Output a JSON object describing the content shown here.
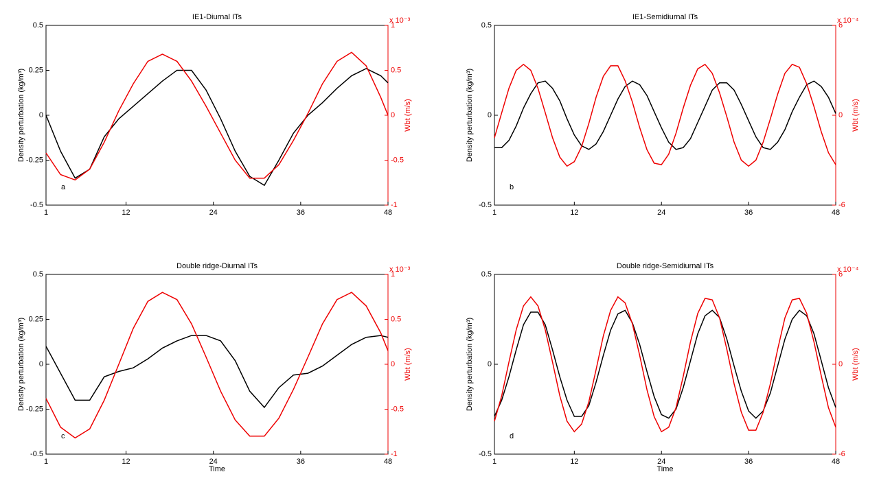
{
  "chart_data": [
    {
      "type": "line",
      "title": "IE1-Diurnal ITs",
      "annotation": "a",
      "ylabel": "Density perturbation (kg/m³)",
      "y2label": "Wbt (m/s)",
      "y2_multiplier": "x 10⁻³",
      "x": [
        1,
        3,
        5,
        7,
        9,
        11,
        13,
        15,
        17,
        19,
        21,
        23,
        25,
        27,
        29,
        31,
        33,
        35,
        37,
        39,
        41,
        43,
        45,
        47,
        48
      ],
      "xlim": [
        1,
        48
      ],
      "xticks": [
        1,
        12,
        24,
        36,
        48
      ],
      "ylim": [
        -0.5,
        0.5
      ],
      "yticks": [
        -0.5,
        -0.25,
        0,
        0.25,
        0.5
      ],
      "y2lim": [
        -1,
        1
      ],
      "y2ticks": [
        -1,
        -0.5,
        0,
        0.5,
        1
      ],
      "series": [
        {
          "color": "#000000",
          "axis": "y",
          "values": [
            0,
            -0.2,
            -0.35,
            -0.3,
            -0.12,
            -0.02,
            0.05,
            0.12,
            0.19,
            0.25,
            0.25,
            0.14,
            -0.02,
            -0.2,
            -0.34,
            -0.39,
            -0.25,
            -0.1,
            0,
            0.07,
            0.15,
            0.22,
            0.26,
            0.22,
            0.18
          ]
        },
        {
          "color": "#ee0000",
          "axis": "y2",
          "values": [
            -0.42,
            -0.66,
            -0.72,
            -0.6,
            -0.3,
            0.05,
            0.35,
            0.6,
            0.68,
            0.6,
            0.38,
            0.1,
            -0.2,
            -0.5,
            -0.7,
            -0.7,
            -0.55,
            -0.28,
            0.02,
            0.35,
            0.6,
            0.7,
            0.55,
            0.2,
            0
          ]
        }
      ]
    },
    {
      "type": "line",
      "title": "IE1-Semidiurnal ITs",
      "annotation": "b",
      "ylabel": "Density perturbation (kg/m³)",
      "y2label": "Wbt (m/s)",
      "y2_multiplier": "x 10⁻⁴",
      "x": [
        1,
        2,
        3,
        4,
        5,
        6,
        7,
        8,
        9,
        10,
        11,
        12,
        13,
        14,
        15,
        16,
        17,
        18,
        19,
        20,
        21,
        22,
        23,
        24,
        25,
        26,
        27,
        28,
        29,
        30,
        31,
        32,
        33,
        34,
        35,
        36,
        37,
        38,
        39,
        40,
        41,
        42,
        43,
        44,
        45,
        46,
        47,
        48
      ],
      "xlim": [
        1,
        48
      ],
      "xticks": [
        1,
        12,
        24,
        36,
        48
      ],
      "ylim": [
        -0.5,
        0.5
      ],
      "yticks": [
        -0.5,
        0,
        0.5
      ],
      "y2lim": [
        -6,
        6
      ],
      "y2ticks": [
        -6,
        0,
        6
      ],
      "series": [
        {
          "color": "#000000",
          "axis": "y",
          "values": [
            -0.18,
            -0.18,
            -0.14,
            -0.06,
            0.04,
            0.12,
            0.18,
            0.19,
            0.15,
            0.08,
            -0.02,
            -0.11,
            -0.17,
            -0.19,
            -0.16,
            -0.09,
            0,
            0.09,
            0.16,
            0.19,
            0.17,
            0.11,
            0.02,
            -0.07,
            -0.15,
            -0.19,
            -0.18,
            -0.13,
            -0.04,
            0.05,
            0.14,
            0.18,
            0.18,
            0.14,
            0.06,
            -0.03,
            -0.12,
            -0.18,
            -0.19,
            -0.15,
            -0.08,
            0.02,
            0.1,
            0.17,
            0.19,
            0.16,
            0.1,
            0.01
          ]
        },
        {
          "color": "#ee0000",
          "axis": "y2",
          "values": [
            -1.5,
            0.17,
            1.8,
            3,
            3.4,
            3,
            1.8,
            0.17,
            -1.5,
            -2.8,
            -3.4,
            -3.1,
            -2.1,
            -0.54,
            1.2,
            2.6,
            3.3,
            3.3,
            2.3,
            0.88,
            -0.82,
            -2.3,
            -3.2,
            -3.3,
            -2.6,
            -1.2,
            0.48,
            2,
            3.1,
            3.4,
            2.8,
            1.5,
            -0.1,
            -1.8,
            -3,
            -3.4,
            -3,
            -1.8,
            -0.24,
            1.4,
            2.8,
            3.4,
            3.2,
            2.1,
            0.58,
            -1.1,
            -2.5,
            -3.3
          ]
        }
      ]
    },
    {
      "type": "line",
      "title": "Double ridge-Diurnal ITs",
      "annotation": "c",
      "xlabel": "Time",
      "ylabel": "Density perturbation (kg/m³)",
      "y2label": "Wbt (m/s)",
      "y2_multiplier": "x 10⁻³",
      "x": [
        1,
        3,
        5,
        7,
        9,
        11,
        13,
        15,
        17,
        19,
        21,
        23,
        25,
        27,
        29,
        31,
        33,
        35,
        37,
        39,
        41,
        43,
        45,
        47,
        48
      ],
      "xlim": [
        1,
        48
      ],
      "xticks": [
        1,
        12,
        24,
        36,
        48
      ],
      "ylim": [
        -0.5,
        0.5
      ],
      "yticks": [
        -0.5,
        -0.25,
        0,
        0.25,
        0.5
      ],
      "y2lim": [
        -1,
        1
      ],
      "y2ticks": [
        -1,
        -0.5,
        0,
        0.5,
        1
      ],
      "series": [
        {
          "color": "#000000",
          "axis": "y",
          "values": [
            0.1,
            -0.05,
            -0.2,
            -0.2,
            -0.07,
            -0.04,
            -0.02,
            0.03,
            0.09,
            0.13,
            0.16,
            0.16,
            0.13,
            0.02,
            -0.15,
            -0.24,
            -0.13,
            -0.06,
            -0.05,
            -0.01,
            0.05,
            0.11,
            0.15,
            0.16,
            0.15
          ]
        },
        {
          "color": "#ee0000",
          "axis": "y2",
          "values": [
            -0.38,
            -0.7,
            -0.82,
            -0.72,
            -0.4,
            0,
            0.4,
            0.7,
            0.8,
            0.72,
            0.45,
            0.08,
            -0.3,
            -0.62,
            -0.8,
            -0.8,
            -0.6,
            -0.28,
            0.08,
            0.45,
            0.72,
            0.8,
            0.65,
            0.35,
            0.15
          ]
        }
      ]
    },
    {
      "type": "line",
      "title": "Double ridge-Semidiurnal ITs",
      "annotation": "d",
      "xlabel": "Time",
      "ylabel": "Density perturbation (kg/m³)",
      "y2label": "Wbt (m/s)",
      "y2_multiplier": "x 10⁻⁴",
      "x": [
        1,
        2,
        3,
        4,
        5,
        6,
        7,
        8,
        9,
        10,
        11,
        12,
        13,
        14,
        15,
        16,
        17,
        18,
        19,
        20,
        21,
        22,
        23,
        24,
        25,
        26,
        27,
        28,
        29,
        30,
        31,
        32,
        33,
        34,
        35,
        36,
        37,
        38,
        39,
        40,
        41,
        42,
        43,
        44,
        45,
        46,
        47,
        48
      ],
      "xlim": [
        1,
        48
      ],
      "xticks": [
        1,
        12,
        24,
        36,
        48
      ],
      "ylim": [
        -0.5,
        0.5
      ],
      "yticks": [
        -0.5,
        0,
        0.5
      ],
      "y2lim": [
        -6,
        6
      ],
      "y2ticks": [
        -6,
        0,
        6
      ],
      "series": [
        {
          "color": "#000000",
          "axis": "y",
          "values": [
            -0.29,
            -0.2,
            -0.07,
            0.08,
            0.22,
            0.29,
            0.29,
            0.22,
            0.08,
            -0.07,
            -0.2,
            -0.29,
            -0.29,
            -0.23,
            -0.1,
            0.05,
            0.19,
            0.28,
            0.3,
            0.23,
            0.11,
            -0.04,
            -0.18,
            -0.28,
            -0.3,
            -0.25,
            -0.13,
            0.02,
            0.17,
            0.27,
            0.3,
            0.26,
            0.14,
            -0.01,
            -0.15,
            -0.26,
            -0.3,
            -0.26,
            -0.16,
            -0.01,
            0.14,
            0.25,
            0.3,
            0.27,
            0.17,
            0.02,
            -0.13,
            -0.24
          ]
        },
        {
          "color": "#ee0000",
          "axis": "y2",
          "values": [
            -3.8,
            -2.1,
            0.14,
            2.3,
            3.9,
            4.5,
            3.9,
            2.3,
            0.14,
            -2.1,
            -3.8,
            -4.5,
            -4,
            -2.5,
            -0.36,
            1.9,
            3.6,
            4.5,
            4.1,
            2.7,
            0.59,
            -1.7,
            -3.5,
            -4.5,
            -4.2,
            -2.9,
            -0.81,
            1.5,
            3.4,
            4.4,
            4.3,
            3.1,
            1,
            -1.3,
            -3.2,
            -4.4,
            -4.4,
            -3.2,
            -1.3,
            0.99,
            3.1,
            4.3,
            4.4,
            3.4,
            1.5,
            -0.77,
            -2.9,
            -4.2
          ]
        }
      ]
    }
  ]
}
